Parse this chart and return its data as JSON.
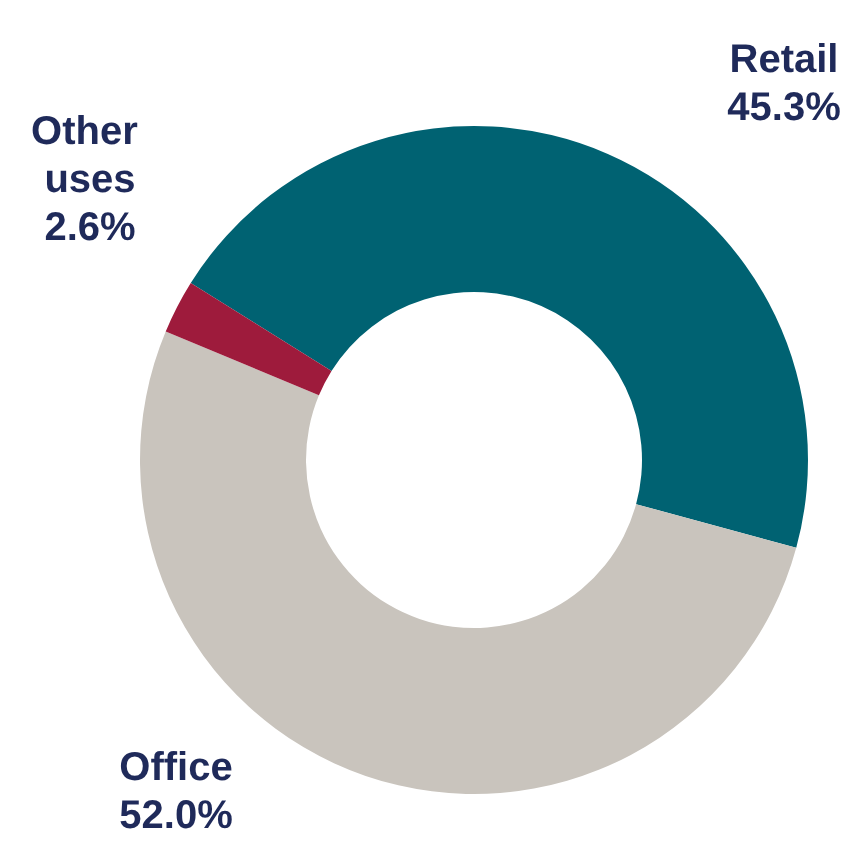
{
  "chart_data": {
    "type": "donut",
    "categories": [
      "Retail",
      "Office",
      "Other uses"
    ],
    "values": [
      45.3,
      52.0,
      2.6
    ],
    "value_labels": [
      "45.3%",
      "52.0%",
      "2.6%"
    ],
    "colors": [
      "#006272",
      "#c9c4bd",
      "#9e1b3c"
    ],
    "legend": false
  }
}
